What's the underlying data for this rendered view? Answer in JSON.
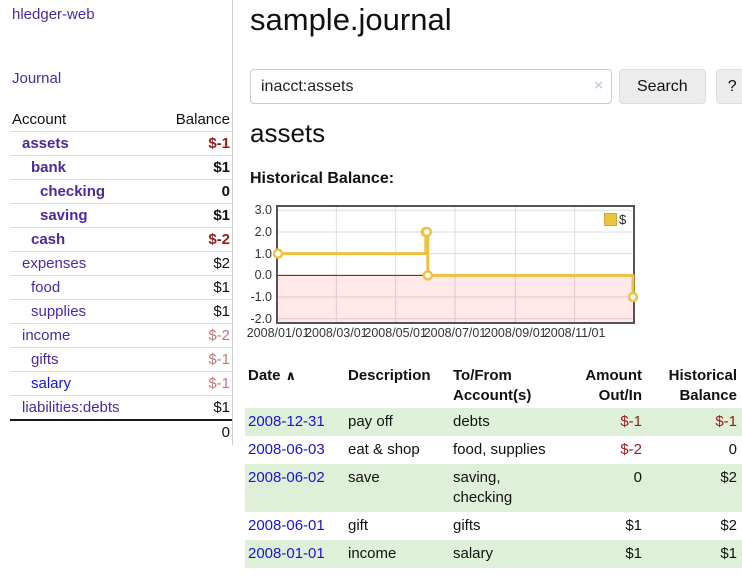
{
  "colors": {
    "purple_link": "#4c2a9d",
    "blue_link": "#1515d0",
    "negative_dark": "#941c1c",
    "negative_light": "#c17878",
    "row_green": "#dff0d8",
    "chart_gold": "#edc240",
    "zero_line": "#a40000"
  },
  "sidebar": {
    "brand": "hledger-web",
    "journal_link": "Journal",
    "accounts": {
      "col_account": "Account",
      "col_balance": "Balance",
      "rows": [
        {
          "name": "assets",
          "depth": 1,
          "bold": true,
          "link": "purple",
          "balance": "$-1",
          "bal_style": "neg-dark"
        },
        {
          "name": "bank",
          "depth": 2,
          "bold": true,
          "link": "purple",
          "balance": "$1",
          "bal_style": "pos"
        },
        {
          "name": "checking",
          "depth": 3,
          "bold": true,
          "link": "purple",
          "balance": "0",
          "bal_style": "pos"
        },
        {
          "name": "saving",
          "depth": 3,
          "bold": true,
          "link": "purple",
          "balance": "$1",
          "bal_style": "pos"
        },
        {
          "name": "cash",
          "depth": 2,
          "bold": true,
          "link": "purple",
          "balance": "$-2",
          "bal_style": "neg-dark"
        },
        {
          "name": "expenses",
          "depth": 1,
          "bold": false,
          "link": "purple",
          "balance": "$2",
          "bal_style": "pos"
        },
        {
          "name": "food",
          "depth": 2,
          "bold": false,
          "link": "purple",
          "balance": "$1",
          "bal_style": "pos"
        },
        {
          "name": "supplies",
          "depth": 2,
          "bold": false,
          "link": "purple",
          "balance": "$1",
          "bal_style": "pos"
        },
        {
          "name": "income",
          "depth": 1,
          "bold": false,
          "link": "purple",
          "balance": "$-2",
          "bal_style": "neg-light"
        },
        {
          "name": "gifts",
          "depth": 2,
          "bold": false,
          "link": "purple",
          "balance": "$-1",
          "bal_style": "neg-light"
        },
        {
          "name": "salary",
          "depth": 2,
          "bold": false,
          "link": "blue",
          "balance": "$-1",
          "bal_style": "neg-light"
        },
        {
          "name": "liabilities:debts",
          "depth": 1,
          "bold": false,
          "link": "purple",
          "balance": "$1",
          "bal_style": "pos"
        }
      ],
      "total": "0"
    }
  },
  "main": {
    "title": "sample.journal",
    "search": {
      "value": "inacct:assets",
      "clear_icon": "×",
      "search_button": "Search",
      "help_button": "?"
    },
    "account_heading": "assets",
    "chart_title": "Historical Balance:",
    "register": {
      "headers": {
        "date": "Date",
        "sort_icon": "∧",
        "description": "Description",
        "accounts": "To/From Account(s)",
        "amount": "Amount Out/In",
        "balance": "Historical Balance"
      },
      "rows": [
        {
          "date": "2008-12-31",
          "description": "pay off",
          "accounts": "debts",
          "amount": "$-1",
          "amount_neg": true,
          "balance": "$-1",
          "balance_neg": true,
          "shaded": true
        },
        {
          "date": "2008-06-03",
          "description": "eat & shop",
          "accounts": "food, supplies",
          "amount": "$-2",
          "amount_neg": true,
          "balance": "0",
          "balance_neg": false,
          "shaded": false
        },
        {
          "date": "2008-06-02",
          "description": "save",
          "accounts": "saving, checking",
          "amount": "0",
          "amount_neg": false,
          "balance": "$2",
          "balance_neg": false,
          "shaded": true
        },
        {
          "date": "2008-06-01",
          "description": "gift",
          "accounts": "gifts",
          "amount": "$1",
          "amount_neg": false,
          "balance": "$2",
          "balance_neg": false,
          "shaded": false
        },
        {
          "date": "2008-01-01",
          "description": "income",
          "accounts": "salary",
          "amount": "$1",
          "amount_neg": false,
          "balance": "$1",
          "balance_neg": false,
          "shaded": true
        }
      ]
    }
  },
  "chart_data": {
    "type": "line",
    "title": "Historical Balance: assets",
    "step": true,
    "series": [
      {
        "name": "$",
        "color": "#edc240",
        "points": [
          [
            "2008-01-01",
            1
          ],
          [
            "2008-06-01",
            2
          ],
          [
            "2008-06-02",
            2
          ],
          [
            "2008-06-03",
            0
          ],
          [
            "2008-12-31",
            -1
          ]
        ]
      }
    ],
    "x_range": [
      "2008-01-01",
      "2008-12-31"
    ],
    "x_ticks": [
      {
        "date": "2008-01-01",
        "label": "2008/01/01"
      },
      {
        "date": "2008-03-01",
        "label": "2008/03/01"
      },
      {
        "date": "2008-05-01",
        "label": "2008/05/01"
      },
      {
        "date": "2008-07-01",
        "label": "2008/07/01"
      },
      {
        "date": "2008-09-01",
        "label": "2008/09/01"
      },
      {
        "date": "2008-11-01",
        "label": "2008/11/01"
      }
    ],
    "y_ticks": [
      "3.0",
      "2.0",
      "1.0",
      "0.0",
      "-1.0",
      "-2.0"
    ],
    "ylim": [
      -2.15,
      3.15
    ],
    "grid": true,
    "legend_position": "top-right",
    "negative_fill": "rgba(255,0,0,0.09)",
    "zero_line_color": "#a40000"
  }
}
